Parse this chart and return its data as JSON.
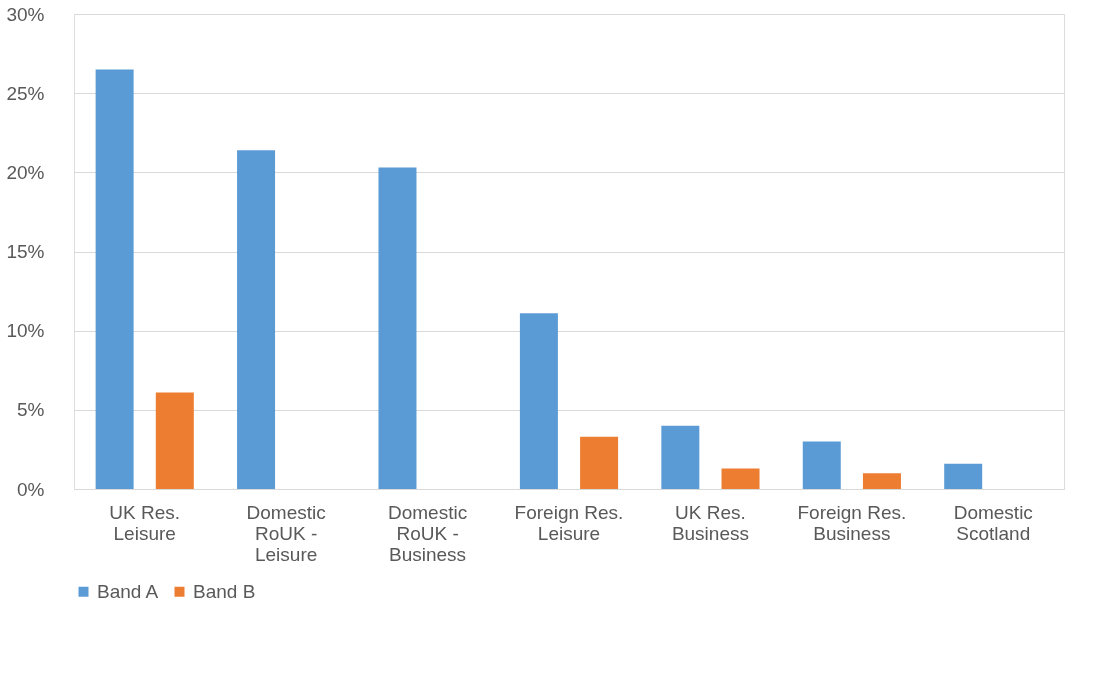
{
  "chart_data": {
    "type": "bar",
    "categories": [
      "UK Res. Leisure",
      "Domestic RoUK - Leisure",
      "Domestic RoUK - Business",
      "Foreign Res. Leisure",
      "UK Res. Business",
      "Foreign Res. Business",
      "Domestic Scotland"
    ],
    "series": [
      {
        "name": "Band A",
        "color": "#5b9bd5",
        "values": [
          26.5,
          21.4,
          20.3,
          11.1,
          4.0,
          3.0,
          1.6
        ]
      },
      {
        "name": "Band B",
        "color": "#ed7d31",
        "values": [
          6.1,
          null,
          null,
          3.3,
          1.3,
          1.0,
          null
        ]
      }
    ],
    "ylim": [
      0,
      30
    ],
    "yticks": [
      {
        "value": 0,
        "label": "0%"
      },
      {
        "value": 5,
        "label": "5%"
      },
      {
        "value": 10,
        "label": "10%"
      },
      {
        "value": 15,
        "label": "15%"
      },
      {
        "value": 20,
        "label": "20%"
      },
      {
        "value": 25,
        "label": "25%"
      },
      {
        "value": 30,
        "label": "30%"
      }
    ],
    "grid": "y",
    "legend": "bottom"
  }
}
